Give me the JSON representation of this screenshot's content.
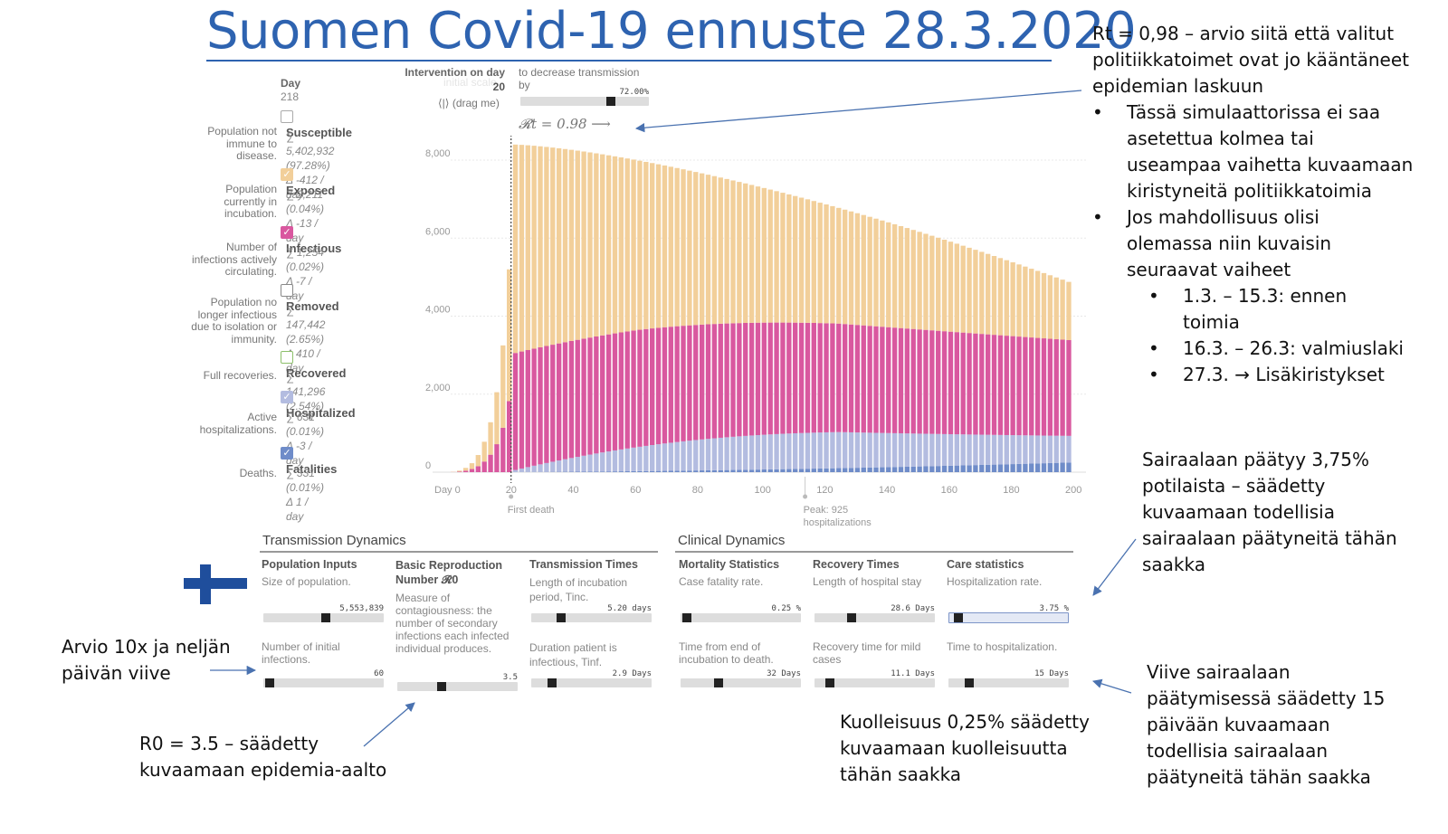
{
  "title": "Suomen Covid-19 ennuste 28.3.2020",
  "notes": {
    "rt_note": [
      "Rt = 0,98 – arvio siitä että valitut",
      "politiikkatoimet ovat jo kääntäneet",
      "epidemian laskuun"
    ],
    "bullet1": [
      "Tässä simulaattorissa ei saa",
      "asetettua kolmea tai",
      "useampaa vaihetta kuvaamaan",
      "kiristyneitä politiikkatoimia"
    ],
    "bullet2": [
      "Jos mahdollisuus olisi",
      "olemassa niin kuvaisin",
      "seuraavat vaiheet"
    ],
    "sub_bullets": [
      [
        "1.3. – 15.3: ennen",
        "toimia"
      ],
      [
        "16.3. – 26.3: valmiuslaki"
      ],
      [
        "27.3. → Lisäkiristykset"
      ]
    ],
    "bullet_symbol": "•",
    "hospital_note": [
      "Sairaalaan päätyy 3,75%",
      "potilaista – säädetty",
      "kuvaamaan todellisia",
      "sairaalaan päätyneitä tähän",
      "saakka"
    ],
    "delay_note": [
      "Viive sairaalaan",
      "päätymisessä säädetty 15",
      "päivään kuvaamaan",
      "todellisia sairaalaan",
      "päätyneitä tähän saakka"
    ],
    "mortality_note": [
      "Kuolleisuus 0,25% säädetty",
      "kuvaamaan kuolleisuutta",
      "tähän saakka"
    ],
    "initial_note": [
      "Arvio 10x ja neljän",
      "päivän viive"
    ],
    "r0_note": [
      "R0 = 3.5 – säädetty",
      "kuvaamaan epidemia-aalto"
    ]
  },
  "legend": {
    "day_label": "Day",
    "day_value": "218",
    "items": [
      {
        "name": "Susceptible",
        "checked": false,
        "color": "#ffffff",
        "border": "#aaaaaa",
        "desc": [
          "Population not",
          "immune to",
          "disease."
        ],
        "sum": "5,402,932 (97.28%)",
        "delta": "-412 / day"
      },
      {
        "name": "Exposed",
        "checked": true,
        "color": "#f2cf9a",
        "border": "#f2cf9a",
        "desc": [
          "Population",
          "currently in",
          "incubation."
        ],
        "sum": "2,211 (0.04%)",
        "delta": "-13 / day"
      },
      {
        "name": "Infectious",
        "checked": true,
        "color": "#d9589f",
        "border": "#d9589f",
        "desc": [
          "Number of",
          "infections actively",
          "circulating."
        ],
        "sum": "1,254 (0.02%)",
        "delta": "-7 / day"
      },
      {
        "name": "Removed",
        "checked": false,
        "color": "#ffffff",
        "border": "#888888",
        "desc": [
          "Population no",
          "longer infectious",
          "due to isolation or",
          "immunity."
        ],
        "sum": "147,442 (2.65%)",
        "delta": "410 / day"
      },
      {
        "name": "Recovered",
        "checked": false,
        "color": "#ffffff",
        "border": "#8cbf6a",
        "desc": [
          "Full recoveries."
        ],
        "sum": "141,296 (2.54%)",
        "delta": ""
      },
      {
        "name": "Hospitalized",
        "checked": true,
        "color": "#b3bce0",
        "border": "#b3bce0",
        "desc": [
          "Active",
          "hospitalizations."
        ],
        "sum": "631 (0.01%)",
        "delta": "-3 / day"
      },
      {
        "name": "Fatalities",
        "checked": true,
        "color": "#6f8cc9",
        "border": "#6f8cc9",
        "desc": [
          "Deaths."
        ],
        "sum": "331 (0.01%)",
        "delta": "1 / day"
      }
    ]
  },
  "intervention": {
    "label": "Intervention on day",
    "day": "20",
    "decrease_label": [
      "to decrease transmission",
      "by"
    ],
    "percent": "72.00%",
    "percent_fraction": 0.72,
    "drag": "(drag me)",
    "faded": "initial scale",
    "rt_label": "𝓡t = 0.98 ⟶"
  },
  "annotations": {
    "first_death": "First death",
    "peak": [
      "Peak: 925",
      "hospitalizations"
    ]
  },
  "chart_data": {
    "type": "bar",
    "stacked": true,
    "x_range": [
      0,
      200
    ],
    "y_range": [
      0,
      8800
    ],
    "x_ticks": [
      0,
      20,
      40,
      60,
      80,
      100,
      120,
      140,
      160,
      180,
      200
    ],
    "x_tick_labels": [
      "Day 0",
      "20",
      "40",
      "60",
      "80",
      "100",
      "120",
      "140",
      "160",
      "180",
      "200"
    ],
    "y_ticks": [
      0,
      2000,
      4000,
      6000,
      8000
    ],
    "y_tick_labels": [
      "0",
      "2,000",
      "4,000",
      "6,000",
      "8,000"
    ],
    "series": [
      {
        "name": "Fatalities",
        "color": "#6f8cc9",
        "shape": "ramp",
        "start": 20,
        "max": 250
      },
      {
        "name": "Hospitalized",
        "color": "#b3bce0",
        "shape": "rise_fall",
        "peak_day": 125,
        "peak_value": 925,
        "end_value": 680
      },
      {
        "name": "Infectious",
        "color": "#d9589f",
        "shape": "plateau_decline",
        "day20": 3000,
        "peak_day": 60,
        "peak_value": 3000,
        "end_value": 2450
      },
      {
        "name": "Exposed",
        "color": "#f2cf9a",
        "shape": "decline",
        "total_day20": 8400,
        "total_day200": 4850
      }
    ],
    "pre_intervention_totals": [
      0,
      10,
      20,
      40,
      70,
      110,
      160,
      230,
      320,
      440,
      600,
      780,
      1000,
      1280,
      1620,
      2050,
      2600,
      3250,
      4000,
      5200,
      8400
    ]
  },
  "transmission": {
    "title": "Transmission Dynamics",
    "population": {
      "head": "Population Inputs",
      "sub": "Size of population.",
      "value": "5,553,839",
      "frac": 0.52
    },
    "initial": {
      "sub": [
        "Number of initial",
        "infections."
      ],
      "value": "60",
      "frac": 0.02
    },
    "r0": {
      "head": [
        "Basic Reproduction",
        "Number 𝓡0"
      ],
      "sub": [
        "Measure of",
        "contagiousness: the",
        "number of secondary",
        "infections each infected",
        "individual produces."
      ],
      "value": "3.5",
      "frac": 0.36
    },
    "times": {
      "head": "Transmission Times",
      "sub": [
        "Length of incubation",
        "period, Tinc."
      ],
      "value": "5.20 days",
      "frac": 0.23
    },
    "infectious": {
      "sub": [
        "Duration patient is",
        "infectious, Tinf."
      ],
      "value": "2.9 Days",
      "frac": 0.15
    }
  },
  "clinical": {
    "title": "Clinical Dynamics",
    "mortality": {
      "head": "Mortality Statistics",
      "sub": "Case fatality rate.",
      "value": "0.25 %",
      "frac": 0.02
    },
    "death_time": {
      "sub": [
        "Time from end of",
        "incubation to death."
      ],
      "value": "32 Days",
      "frac": 0.3
    },
    "recovery": {
      "head": "Recovery Times",
      "sub": "Length of hospital stay",
      "value": "28.6 Days",
      "frac": 0.29
    },
    "mild": {
      "sub": [
        "Recovery time for mild",
        "cases"
      ],
      "value": "11.1 Days",
      "frac": 0.1
    },
    "care": {
      "head": "Care statistics",
      "sub": "Hospitalization rate.",
      "value": "3.75 %",
      "frac": 0.05
    },
    "hosp_time": {
      "sub": "Time to hospitalization.",
      "value": "15 Days",
      "frac": 0.15
    }
  },
  "colors": {
    "title": "#2e63b0",
    "arrow": "#4a72b0",
    "flag_blue": "#1f4e9c"
  }
}
